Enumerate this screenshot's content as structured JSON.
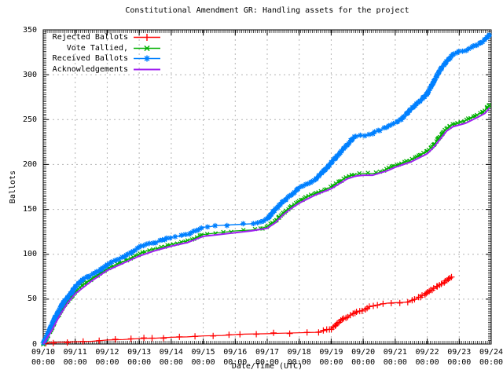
{
  "chart_data": {
    "type": "line",
    "title": "Constitutional Amendment GR: Handling assets for the project",
    "xlabel": "Date/Time (UTC)",
    "ylabel": "Ballots",
    "ylim": [
      0,
      350
    ],
    "xlim_days": [
      0,
      14
    ],
    "x_unit": "days since 09/10 00:00 UTC",
    "grid": true,
    "legend_position": "top-left",
    "yticks": [
      0,
      50,
      100,
      150,
      200,
      250,
      300,
      350
    ],
    "xticks": [
      {
        "day": 0,
        "date": "09/10",
        "time": "00:00"
      },
      {
        "day": 1,
        "date": "09/11",
        "time": "00:00"
      },
      {
        "day": 2,
        "date": "09/12",
        "time": "00:00"
      },
      {
        "day": 3,
        "date": "09/13",
        "time": "00:00"
      },
      {
        "day": 4,
        "date": "09/14",
        "time": "00:00"
      },
      {
        "day": 5,
        "date": "09/15",
        "time": "00:00"
      },
      {
        "day": 6,
        "date": "09/16",
        "time": "00:00"
      },
      {
        "day": 7,
        "date": "09/17",
        "time": "00:00"
      },
      {
        "day": 8,
        "date": "09/18",
        "time": "00:00"
      },
      {
        "day": 9,
        "date": "09/19",
        "time": "00:00"
      },
      {
        "day": 10,
        "date": "09/20",
        "time": "00:00"
      },
      {
        "day": 11,
        "date": "09/21",
        "time": "00:00"
      },
      {
        "day": 12,
        "date": "09/22",
        "time": "00:00"
      },
      {
        "day": 13,
        "date": "09/23",
        "time": "00:00"
      },
      {
        "day": 14,
        "date": "09/24",
        "time": "00:00"
      }
    ],
    "series": [
      {
        "name": "Rejected Ballots",
        "color": "#ff0000",
        "marker": "plus",
        "line_width": 1.2,
        "points": [
          [
            0,
            0
          ],
          [
            0.15,
            1.5
          ],
          [
            0.5,
            2
          ],
          [
            1,
            2.5
          ],
          [
            1.5,
            3
          ],
          [
            2,
            4.5
          ],
          [
            2.5,
            5
          ],
          [
            3,
            6
          ],
          [
            3.3,
            6.5
          ],
          [
            3.5,
            6.5
          ],
          [
            4,
            7.5
          ],
          [
            4.5,
            8
          ],
          [
            5,
            9
          ],
          [
            5.6,
            9.5
          ],
          [
            6,
            10.5
          ],
          [
            6.3,
            11
          ],
          [
            7,
            11.5
          ],
          [
            7.4,
            12
          ],
          [
            8,
            12.5
          ],
          [
            8.5,
            13
          ],
          [
            8.7,
            14
          ],
          [
            9,
            17
          ],
          [
            9.15,
            21
          ],
          [
            9.3,
            26
          ],
          [
            9.5,
            30
          ],
          [
            9.75,
            35
          ],
          [
            10,
            38
          ],
          [
            10.25,
            42
          ],
          [
            10.5,
            44
          ],
          [
            10.75,
            45.5
          ],
          [
            11,
            46
          ],
          [
            11.3,
            46.5
          ],
          [
            11.5,
            48
          ],
          [
            11.75,
            52
          ],
          [
            12,
            57
          ],
          [
            12.25,
            63
          ],
          [
            12.5,
            68
          ],
          [
            12.65,
            72
          ],
          [
            12.78,
            75
          ]
        ]
      },
      {
        "name": "Vote Tallied,",
        "color": "#00b000",
        "marker": "cross",
        "line_width": 1.2,
        "points": [
          [
            0,
            0
          ],
          [
            0.1,
            6
          ],
          [
            0.25,
            16
          ],
          [
            0.4,
            28
          ],
          [
            0.5,
            33
          ],
          [
            0.6,
            40
          ],
          [
            0.75,
            47
          ],
          [
            0.9,
            53
          ],
          [
            1,
            58
          ],
          [
            1.25,
            66
          ],
          [
            1.5,
            72
          ],
          [
            1.75,
            78
          ],
          [
            2,
            84
          ],
          [
            2.25,
            88
          ],
          [
            2.5,
            92
          ],
          [
            2.75,
            96
          ],
          [
            3,
            100
          ],
          [
            3.25,
            104
          ],
          [
            3.5,
            106
          ],
          [
            3.75,
            108
          ],
          [
            4,
            111
          ],
          [
            4.25,
            113
          ],
          [
            4.5,
            115
          ],
          [
            4.75,
            118
          ],
          [
            5,
            122
          ],
          [
            5.25,
            123
          ],
          [
            5.5,
            124
          ],
          [
            6,
            126
          ],
          [
            6.5,
            127
          ],
          [
            6.75,
            128
          ],
          [
            7,
            131
          ],
          [
            7.25,
            137
          ],
          [
            7.5,
            146
          ],
          [
            7.75,
            153
          ],
          [
            8,
            159
          ],
          [
            8.25,
            164
          ],
          [
            8.5,
            168
          ],
          [
            8.75,
            171
          ],
          [
            9,
            175
          ],
          [
            9.25,
            181
          ],
          [
            9.5,
            186
          ],
          [
            9.75,
            189
          ],
          [
            10,
            190
          ],
          [
            10.3,
            190
          ],
          [
            10.5,
            191
          ],
          [
            10.75,
            195
          ],
          [
            11,
            199
          ],
          [
            11.25,
            202
          ],
          [
            11.5,
            205
          ],
          [
            11.75,
            210
          ],
          [
            12,
            215
          ],
          [
            12.2,
            222
          ],
          [
            12.4,
            231
          ],
          [
            12.6,
            240
          ],
          [
            12.8,
            245
          ],
          [
            13,
            247
          ],
          [
            13.2,
            249
          ],
          [
            13.4,
            253
          ],
          [
            13.6,
            256
          ],
          [
            13.8,
            260
          ],
          [
            13.95,
            267
          ]
        ]
      },
      {
        "name": "Received Ballots",
        "color": "#0080ff",
        "marker": "star",
        "line_width": 1.4,
        "points": [
          [
            0,
            1
          ],
          [
            0.1,
            8
          ],
          [
            0.25,
            20
          ],
          [
            0.4,
            32
          ],
          [
            0.5,
            38
          ],
          [
            0.6,
            45
          ],
          [
            0.75,
            52
          ],
          [
            0.9,
            58
          ],
          [
            1,
            64
          ],
          [
            1.25,
            72
          ],
          [
            1.5,
            77
          ],
          [
            1.75,
            82
          ],
          [
            2,
            88
          ],
          [
            2.25,
            93
          ],
          [
            2.5,
            97
          ],
          [
            2.75,
            102
          ],
          [
            3,
            108
          ],
          [
            3.25,
            111
          ],
          [
            3.5,
            113
          ],
          [
            3.75,
            116
          ],
          [
            4,
            119
          ],
          [
            4.25,
            120
          ],
          [
            4.5,
            122
          ],
          [
            4.75,
            126
          ],
          [
            5,
            130
          ],
          [
            5.25,
            131
          ],
          [
            5.5,
            132
          ],
          [
            6,
            133
          ],
          [
            6.5,
            134
          ],
          [
            6.75,
            136
          ],
          [
            7,
            139
          ],
          [
            7.25,
            150
          ],
          [
            7.5,
            159
          ],
          [
            7.75,
            166
          ],
          [
            8,
            174
          ],
          [
            8.25,
            178
          ],
          [
            8.5,
            183
          ],
          [
            8.75,
            192
          ],
          [
            9,
            202
          ],
          [
            9.25,
            212
          ],
          [
            9.5,
            222
          ],
          [
            9.7,
            230
          ],
          [
            9.8,
            232
          ],
          [
            10,
            232
          ],
          [
            10.25,
            234
          ],
          [
            10.5,
            238
          ],
          [
            10.75,
            242
          ],
          [
            11,
            246
          ],
          [
            11.25,
            252
          ],
          [
            11.5,
            262
          ],
          [
            11.75,
            270
          ],
          [
            12,
            279
          ],
          [
            12.2,
            292
          ],
          [
            12.4,
            305
          ],
          [
            12.6,
            315
          ],
          [
            12.8,
            322
          ],
          [
            13,
            326
          ],
          [
            13.2,
            327
          ],
          [
            13.4,
            331
          ],
          [
            13.6,
            334
          ],
          [
            13.8,
            339
          ],
          [
            13.95,
            345
          ]
        ]
      },
      {
        "name": "Acknowledgements",
        "color": "#a020f0",
        "marker": "none",
        "line_width": 2,
        "points": [
          [
            0,
            0
          ],
          [
            0.25,
            14
          ],
          [
            0.5,
            31
          ],
          [
            0.75,
            45
          ],
          [
            1,
            56
          ],
          [
            1.5,
            70
          ],
          [
            2,
            82
          ],
          [
            2.5,
            90
          ],
          [
            3,
            98
          ],
          [
            3.5,
            104
          ],
          [
            4,
            109
          ],
          [
            4.5,
            113
          ],
          [
            5,
            120
          ],
          [
            5.5,
            122
          ],
          [
            6,
            124
          ],
          [
            6.5,
            126
          ],
          [
            7,
            129
          ],
          [
            7.25,
            135
          ],
          [
            7.5,
            144
          ],
          [
            7.75,
            151
          ],
          [
            8,
            157
          ],
          [
            8.5,
            166
          ],
          [
            9,
            173
          ],
          [
            9.5,
            184
          ],
          [
            9.75,
            187
          ],
          [
            10,
            188
          ],
          [
            10.3,
            188
          ],
          [
            10.75,
            193
          ],
          [
            11,
            197
          ],
          [
            11.5,
            203
          ],
          [
            12,
            212
          ],
          [
            12.2,
            219
          ],
          [
            12.4,
            228
          ],
          [
            12.6,
            237
          ],
          [
            12.8,
            242
          ],
          [
            13,
            244
          ],
          [
            13.2,
            246
          ],
          [
            13.6,
            253
          ],
          [
            13.8,
            257
          ],
          [
            13.95,
            263
          ]
        ]
      }
    ],
    "colors": {
      "grid": "#b4b4b4",
      "axis": "#000000",
      "background": "#ffffff"
    }
  }
}
